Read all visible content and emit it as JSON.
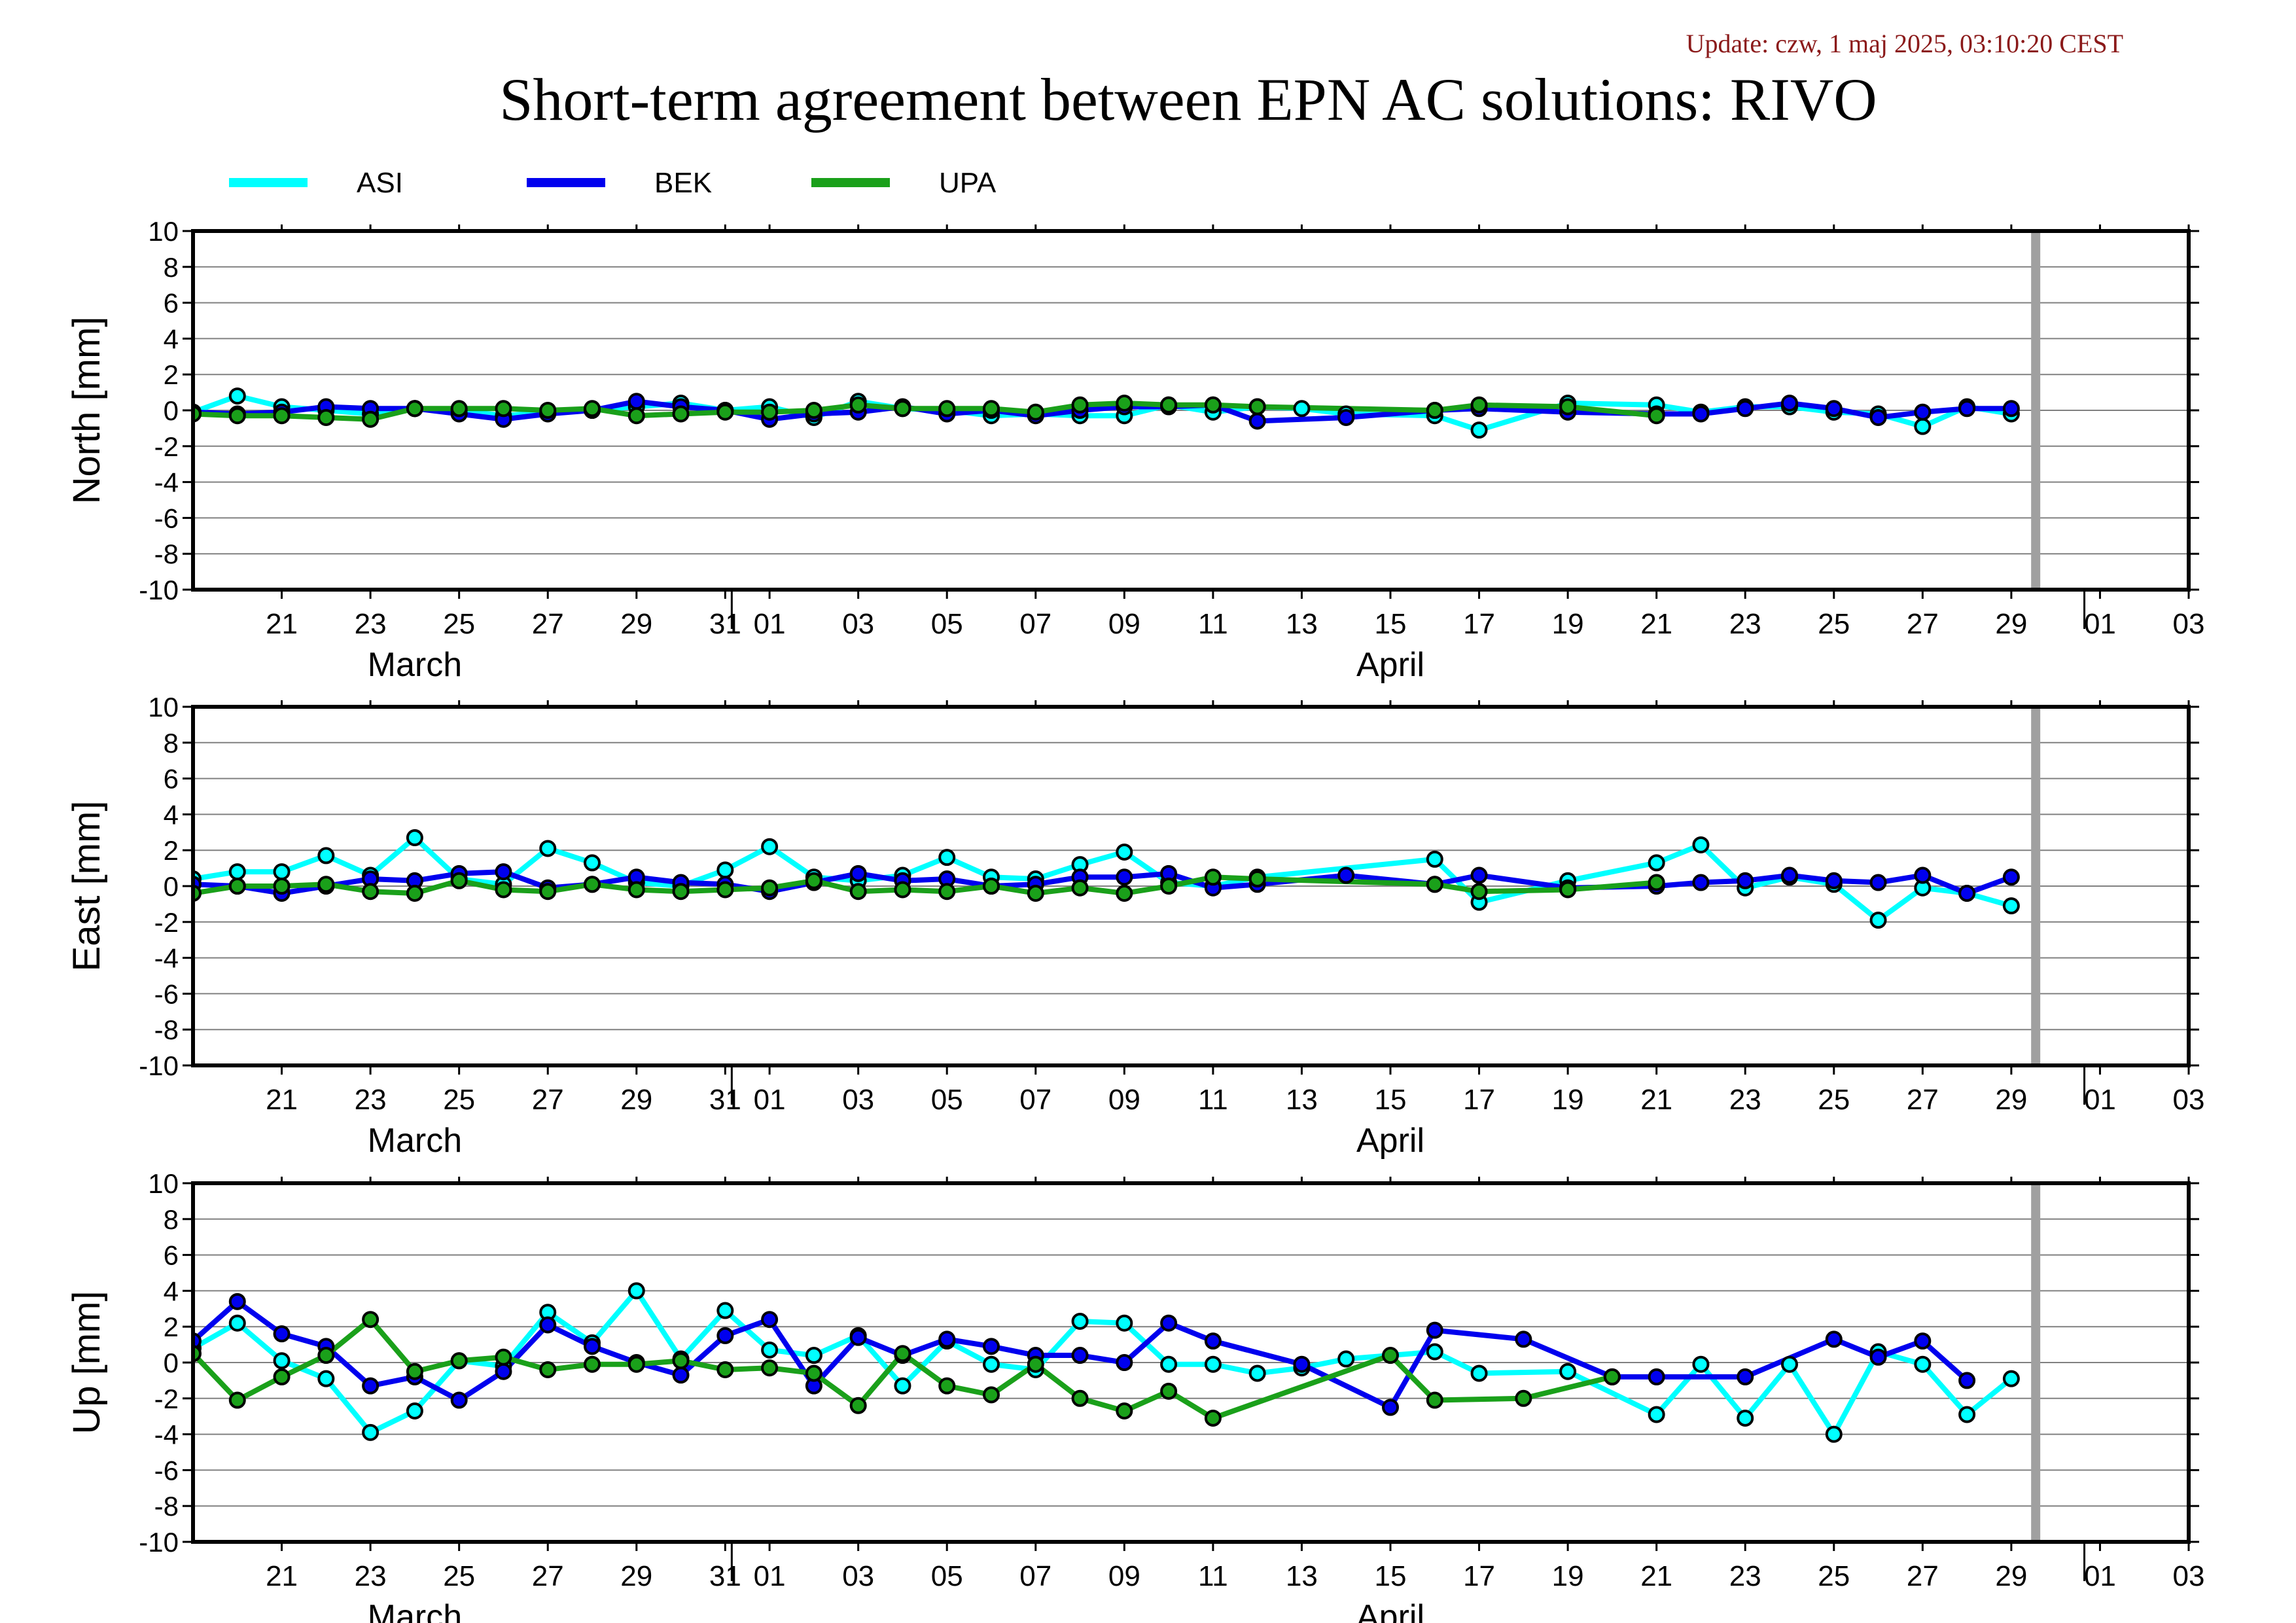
{
  "update_text": "Update: czw, 1 maj 2025, 03:10:20 CEST",
  "title": "Short-term agreement between EPN AC solutions: RIVO",
  "chart_data": {
    "type": "line",
    "x_tick_labels": [
      "21",
      "23",
      "25",
      "27",
      "29",
      "31",
      "01",
      "03",
      "05",
      "07",
      "09",
      "11",
      "13",
      "15",
      "17",
      "19",
      "21",
      "23",
      "25",
      "27",
      "29",
      "01",
      "03"
    ],
    "month_labels": [
      "March",
      "April"
    ],
    "series_styles": [
      {
        "name": "ASI",
        "color": "#00ffff"
      },
      {
        "name": "BEK",
        "color": "#0000ee"
      },
      {
        "name": "UPA",
        "color": "#1aa01a"
      }
    ],
    "x_range": [
      "2025-03-19",
      "2025-05-03"
    ],
    "vertical_marker_date": "2025-04-29",
    "panels": [
      {
        "ylabel": "North [mm]",
        "ylim": [
          -10,
          10
        ],
        "y_ticks": [
          10,
          8,
          6,
          4,
          2,
          0,
          -2,
          -4,
          -6,
          -8,
          -10
        ],
        "series": [
          {
            "name": "ASI",
            "x": [
              "2025-03-19",
              "2025-03-20",
              "2025-03-21",
              "2025-03-22",
              "2025-03-23",
              "2025-03-24",
              "2025-03-25",
              "2025-03-26",
              "2025-03-27",
              "2025-03-28",
              "2025-03-29",
              "2025-03-30",
              "2025-03-31",
              "2025-04-01",
              "2025-04-02",
              "2025-04-03",
              "2025-04-04",
              "2025-04-05",
              "2025-04-06",
              "2025-04-07",
              "2025-04-08",
              "2025-04-09",
              "2025-04-10",
              "2025-04-11",
              "2025-04-12",
              "2025-04-13",
              "2025-04-14",
              "2025-04-16",
              "2025-04-17",
              "2025-04-19",
              "2025-04-21",
              "2025-04-22",
              "2025-04-23",
              "2025-04-24",
              "2025-04-25",
              "2025-04-26",
              "2025-04-27",
              "2025-04-28",
              "2025-04-29"
            ],
            "y": [
              -0.1,
              0.8,
              0.2,
              0.0,
              -0.2,
              0.1,
              0.0,
              -0.3,
              -0.1,
              0.0,
              0.2,
              0.4,
              0.0,
              0.2,
              -0.4,
              0.5,
              0.1,
              0.0,
              -0.3,
              -0.2,
              -0.3,
              -0.3,
              0.3,
              -0.1,
              0.2,
              0.1,
              -0.2,
              -0.3,
              -1.1,
              0.4,
              0.3,
              -0.1,
              0.2,
              0.2,
              -0.1,
              -0.2,
              -0.9,
              0.2,
              -0.2
            ]
          },
          {
            "name": "BEK",
            "x": [
              "2025-03-19",
              "2025-03-20",
              "2025-03-21",
              "2025-03-22",
              "2025-03-23",
              "2025-03-24",
              "2025-03-25",
              "2025-03-26",
              "2025-03-27",
              "2025-03-28",
              "2025-03-29",
              "2025-03-30",
              "2025-03-31",
              "2025-04-01",
              "2025-04-02",
              "2025-04-03",
              "2025-04-04",
              "2025-04-05",
              "2025-04-06",
              "2025-04-07",
              "2025-04-08",
              "2025-04-09",
              "2025-04-10",
              "2025-04-11",
              "2025-04-12",
              "2025-04-14",
              "2025-04-16",
              "2025-04-17",
              "2025-04-19",
              "2025-04-21",
              "2025-04-22",
              "2025-04-23",
              "2025-04-24",
              "2025-04-25",
              "2025-04-26",
              "2025-04-27",
              "2025-04-28",
              "2025-04-29"
            ],
            "y": [
              -0.1,
              -0.2,
              -0.1,
              0.2,
              0.1,
              0.1,
              -0.2,
              -0.5,
              -0.2,
              0.0,
              0.5,
              0.2,
              0.0,
              -0.5,
              -0.2,
              -0.1,
              0.2,
              -0.2,
              0.0,
              -0.3,
              0.0,
              0.2,
              0.2,
              0.3,
              -0.6,
              -0.4,
              0.0,
              0.1,
              -0.1,
              -0.2,
              -0.2,
              0.1,
              0.4,
              0.1,
              -0.4,
              -0.1,
              0.1,
              0.1
            ]
          },
          {
            "name": "UPA",
            "x": [
              "2025-03-19",
              "2025-03-20",
              "2025-03-21",
              "2025-03-22",
              "2025-03-23",
              "2025-03-24",
              "2025-03-25",
              "2025-03-26",
              "2025-03-27",
              "2025-03-28",
              "2025-03-29",
              "2025-03-30",
              "2025-03-31",
              "2025-04-01",
              "2025-04-02",
              "2025-04-03",
              "2025-04-04",
              "2025-04-05",
              "2025-04-06",
              "2025-04-07",
              "2025-04-08",
              "2025-04-09",
              "2025-04-10",
              "2025-04-11",
              "2025-04-12",
              "2025-04-16",
              "2025-04-17",
              "2025-04-19",
              "2025-04-21"
            ],
            "y": [
              -0.2,
              -0.3,
              -0.3,
              -0.4,
              -0.5,
              0.1,
              0.1,
              0.1,
              0.0,
              0.1,
              -0.3,
              -0.2,
              -0.1,
              -0.1,
              0.0,
              0.3,
              0.1,
              0.1,
              0.1,
              -0.1,
              0.3,
              0.4,
              0.3,
              0.3,
              0.2,
              0.0,
              0.3,
              0.2,
              -0.3
            ]
          }
        ]
      },
      {
        "ylabel": "East [mm]",
        "ylim": [
          -10,
          10
        ],
        "y_ticks": [
          10,
          8,
          6,
          4,
          2,
          0,
          -2,
          -4,
          -6,
          -8,
          -10
        ],
        "series": [
          {
            "name": "ASI",
            "x": [
              "2025-03-19",
              "2025-03-20",
              "2025-03-21",
              "2025-03-22",
              "2025-03-23",
              "2025-03-24",
              "2025-03-25",
              "2025-03-26",
              "2025-03-27",
              "2025-03-28",
              "2025-03-29",
              "2025-03-30",
              "2025-03-31",
              "2025-04-01",
              "2025-04-02",
              "2025-04-03",
              "2025-04-04",
              "2025-04-05",
              "2025-04-06",
              "2025-04-07",
              "2025-04-08",
              "2025-04-09",
              "2025-04-10",
              "2025-04-11",
              "2025-04-12",
              "2025-04-16",
              "2025-04-17",
              "2025-04-19",
              "2025-04-21",
              "2025-04-22",
              "2025-04-23",
              "2025-04-24",
              "2025-04-25",
              "2025-04-26",
              "2025-04-27",
              "2025-04-28",
              "2025-04-29"
            ],
            "y": [
              0.4,
              0.8,
              0.8,
              1.7,
              0.6,
              2.7,
              0.4,
              0.1,
              2.1,
              1.3,
              0.2,
              0.0,
              0.9,
              2.2,
              0.5,
              0.3,
              0.6,
              1.6,
              0.5,
              0.4,
              1.2,
              1.9,
              0.2,
              0.0,
              0.5,
              1.5,
              -0.9,
              0.3,
              1.3,
              2.3,
              -0.1,
              0.5,
              0.1,
              -1.9,
              -0.1,
              -0.4,
              -1.1
            ]
          },
          {
            "name": "BEK",
            "x": [
              "2025-03-19",
              "2025-03-20",
              "2025-03-21",
              "2025-03-22",
              "2025-03-23",
              "2025-03-24",
              "2025-03-25",
              "2025-03-26",
              "2025-03-27",
              "2025-03-28",
              "2025-03-29",
              "2025-03-30",
              "2025-03-31",
              "2025-04-01",
              "2025-04-02",
              "2025-04-03",
              "2025-04-04",
              "2025-04-05",
              "2025-04-06",
              "2025-04-07",
              "2025-04-08",
              "2025-04-09",
              "2025-04-10",
              "2025-04-11",
              "2025-04-12",
              "2025-04-14",
              "2025-04-16",
              "2025-04-17",
              "2025-04-19",
              "2025-04-21",
              "2025-04-22",
              "2025-04-23",
              "2025-04-24",
              "2025-04-25",
              "2025-04-26",
              "2025-04-27",
              "2025-04-28",
              "2025-04-29"
            ],
            "y": [
              0.1,
              0.0,
              -0.4,
              0.0,
              0.4,
              0.3,
              0.7,
              0.8,
              -0.1,
              0.1,
              0.5,
              0.2,
              0.1,
              -0.3,
              0.2,
              0.7,
              0.3,
              0.4,
              0.0,
              0.1,
              0.5,
              0.5,
              0.7,
              -0.1,
              0.1,
              0.6,
              0.1,
              0.6,
              -0.1,
              0.0,
              0.2,
              0.3,
              0.6,
              0.3,
              0.2,
              0.6,
              -0.4,
              0.5
            ]
          },
          {
            "name": "UPA",
            "x": [
              "2025-03-19",
              "2025-03-20",
              "2025-03-21",
              "2025-03-22",
              "2025-03-23",
              "2025-03-24",
              "2025-03-25",
              "2025-03-26",
              "2025-03-27",
              "2025-03-28",
              "2025-03-29",
              "2025-03-30",
              "2025-03-31",
              "2025-04-01",
              "2025-04-02",
              "2025-04-03",
              "2025-04-04",
              "2025-04-05",
              "2025-04-06",
              "2025-04-07",
              "2025-04-08",
              "2025-04-09",
              "2025-04-10",
              "2025-04-11",
              "2025-04-12",
              "2025-04-16",
              "2025-04-17",
              "2025-04-19",
              "2025-04-21"
            ],
            "y": [
              -0.4,
              0.0,
              0.0,
              0.1,
              -0.3,
              -0.4,
              0.3,
              -0.2,
              -0.3,
              0.1,
              -0.2,
              -0.3,
              -0.2,
              -0.1,
              0.3,
              -0.3,
              -0.2,
              -0.3,
              0.0,
              -0.4,
              -0.1,
              -0.4,
              0.0,
              0.5,
              0.4,
              0.1,
              -0.3,
              -0.2,
              0.2
            ]
          }
        ]
      },
      {
        "ylabel": "Up [mm]",
        "ylim": [
          -10,
          10
        ],
        "y_ticks": [
          10,
          8,
          6,
          4,
          2,
          0,
          -2,
          -4,
          -6,
          -8,
          -10
        ],
        "series": [
          {
            "name": "ASI",
            "x": [
              "2025-03-19",
              "2025-03-20",
              "2025-03-21",
              "2025-03-22",
              "2025-03-23",
              "2025-03-24",
              "2025-03-25",
              "2025-03-26",
              "2025-03-27",
              "2025-03-28",
              "2025-03-29",
              "2025-03-30",
              "2025-03-31",
              "2025-04-01",
              "2025-04-02",
              "2025-04-03",
              "2025-04-04",
              "2025-04-05",
              "2025-04-06",
              "2025-04-07",
              "2025-04-08",
              "2025-04-09",
              "2025-04-10",
              "2025-04-11",
              "2025-04-12",
              "2025-04-13",
              "2025-04-14",
              "2025-04-16",
              "2025-04-17",
              "2025-04-19",
              "2025-04-21",
              "2025-04-22",
              "2025-04-23",
              "2025-04-24",
              "2025-04-25",
              "2025-04-26",
              "2025-04-27",
              "2025-04-28",
              "2025-04-29"
            ],
            "y": [
              0.8,
              2.2,
              0.1,
              -0.9,
              -3.9,
              -2.7,
              0.1,
              -0.2,
              2.8,
              1.1,
              4.0,
              0.2,
              2.9,
              0.7,
              0.4,
              1.5,
              -1.3,
              1.2,
              -0.1,
              -0.4,
              2.3,
              2.2,
              -0.1,
              -0.1,
              -0.6,
              -0.3,
              0.2,
              0.6,
              -0.6,
              -0.5,
              -2.9,
              -0.1,
              -3.1,
              -0.1,
              -4.0,
              0.6,
              -0.1,
              -2.9,
              -0.9
            ]
          },
          {
            "name": "BEK",
            "x": [
              "2025-03-19",
              "2025-03-20",
              "2025-03-21",
              "2025-03-22",
              "2025-03-23",
              "2025-03-24",
              "2025-03-25",
              "2025-03-26",
              "2025-03-27",
              "2025-03-28",
              "2025-03-29",
              "2025-03-30",
              "2025-03-31",
              "2025-04-01",
              "2025-04-02",
              "2025-04-03",
              "2025-04-04",
              "2025-04-05",
              "2025-04-06",
              "2025-04-07",
              "2025-04-08",
              "2025-04-09",
              "2025-04-10",
              "2025-04-11",
              "2025-04-13",
              "2025-04-15",
              "2025-04-16",
              "2025-04-18",
              "2025-04-20",
              "2025-04-21",
              "2025-04-23",
              "2025-04-25",
              "2025-04-26",
              "2025-04-27",
              "2025-04-28"
            ],
            "y": [
              1.2,
              3.4,
              1.6,
              0.9,
              -1.3,
              -0.8,
              -2.1,
              -0.5,
              2.1,
              0.9,
              0.0,
              -0.7,
              1.5,
              2.4,
              -1.3,
              1.4,
              0.4,
              1.3,
              0.9,
              0.4,
              0.4,
              0.0,
              2.2,
              1.2,
              -0.1,
              -2.5,
              1.8,
              1.3,
              -0.8,
              -0.8,
              -0.8,
              1.3,
              0.3,
              1.2,
              -1.0
            ]
          },
          {
            "name": "UPA",
            "x": [
              "2025-03-19",
              "2025-03-20",
              "2025-03-21",
              "2025-03-22",
              "2025-03-23",
              "2025-03-24",
              "2025-03-25",
              "2025-03-26",
              "2025-03-27",
              "2025-03-28",
              "2025-03-29",
              "2025-03-30",
              "2025-03-31",
              "2025-04-01",
              "2025-04-02",
              "2025-04-03",
              "2025-04-04",
              "2025-04-05",
              "2025-04-06",
              "2025-04-07",
              "2025-04-08",
              "2025-04-09",
              "2025-04-10",
              "2025-04-11",
              "2025-04-15",
              "2025-04-16",
              "2025-04-18",
              "2025-04-20"
            ],
            "y": [
              0.5,
              -2.1,
              -0.8,
              0.4,
              2.4,
              -0.5,
              0.1,
              0.3,
              -0.4,
              -0.1,
              -0.1,
              0.1,
              -0.4,
              -0.3,
              -0.6,
              -2.4,
              0.5,
              -1.3,
              -1.8,
              -0.1,
              -2.0,
              -2.7,
              -1.6,
              -3.1,
              0.4,
              -2.1,
              -2.0,
              -0.8
            ]
          }
        ]
      }
    ]
  }
}
